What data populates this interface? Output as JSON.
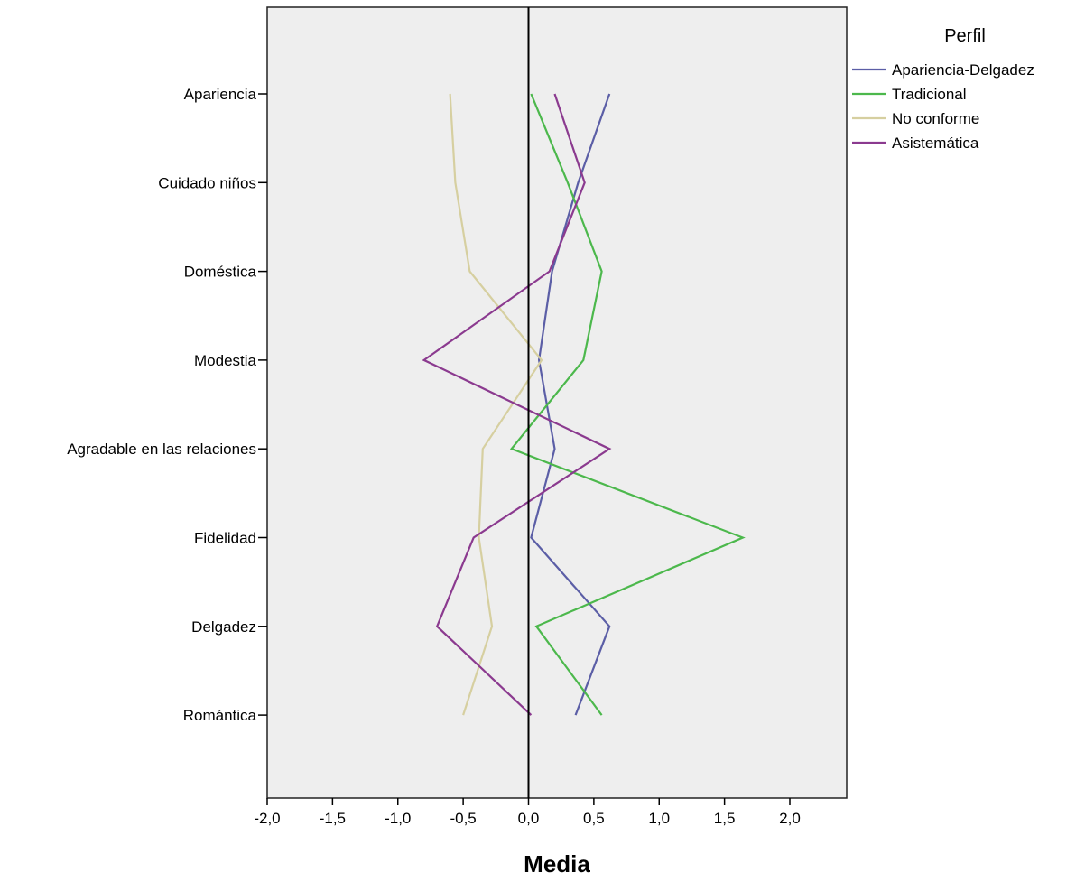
{
  "chart_data": {
    "type": "line",
    "orientation": "horizontal",
    "xlabel": "Media",
    "xlim": [
      -2.0,
      2.45
    ],
    "xticks": [
      -2.0,
      -1.5,
      -1.0,
      -0.5,
      0.0,
      0.5,
      1.0,
      1.5,
      2.0
    ],
    "xtick_labels": [
      "-2,0",
      "-1,5",
      "-1,0",
      "-0,5",
      "0,0",
      "0,5",
      "1,0",
      "1,5",
      "2,0"
    ],
    "reference_line": 0.0,
    "categories": [
      "Apariencia",
      "Cuidado niños",
      "Doméstica",
      "Modestia",
      "Agradable en las relaciones",
      "Fidelidad",
      "Delgadez",
      "Romántica"
    ],
    "legend": {
      "title": "Perfil",
      "position": "right"
    },
    "grid": false,
    "series": [
      {
        "name": "Apariencia-Delgadez",
        "color": "#5b5ea6",
        "values": [
          0.62,
          0.38,
          0.18,
          0.08,
          0.2,
          0.02,
          0.62,
          0.36
        ]
      },
      {
        "name": "Tradicional",
        "color": "#4cb84c",
        "values": [
          0.02,
          0.3,
          0.56,
          0.42,
          -0.13,
          1.64,
          0.06,
          0.56
        ]
      },
      {
        "name": "No conforme",
        "color": "#d6cfa0",
        "values": [
          -0.6,
          -0.56,
          -0.45,
          0.1,
          -0.35,
          -0.38,
          -0.28,
          -0.5
        ]
      },
      {
        "name": "Asistemática",
        "color": "#8b3a8f",
        "values": [
          0.2,
          0.43,
          0.16,
          -0.8,
          0.62,
          -0.42,
          -0.7,
          0.02
        ]
      }
    ]
  }
}
